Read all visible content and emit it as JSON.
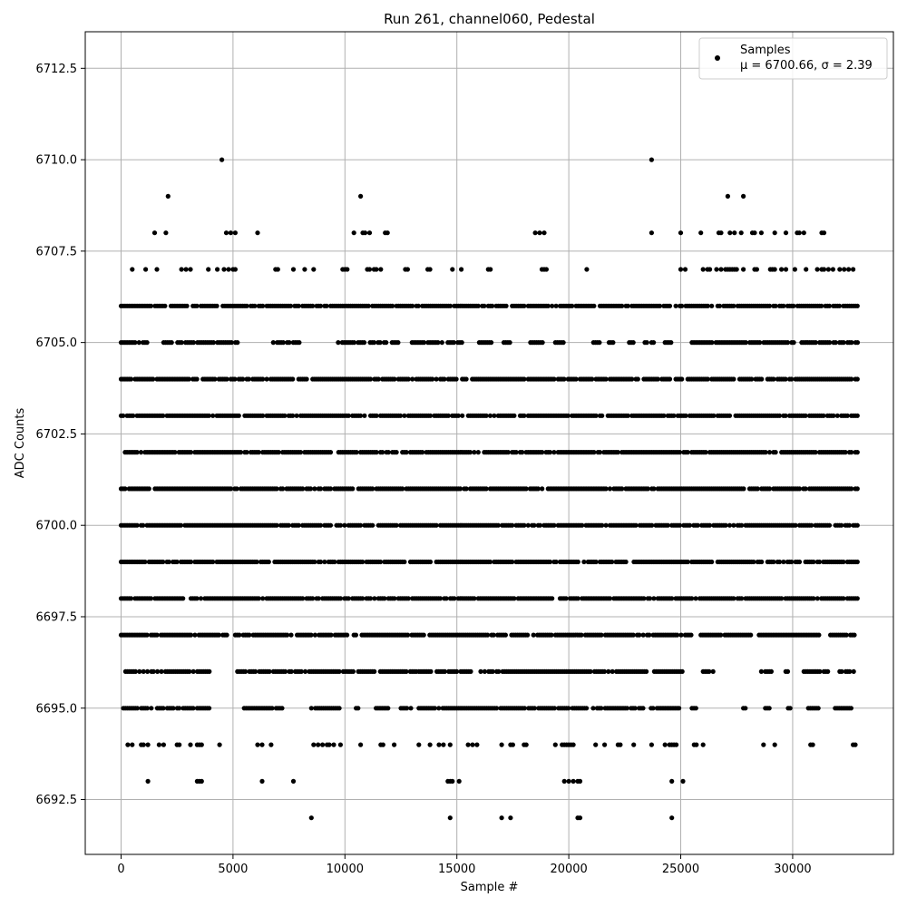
{
  "chart_data": {
    "type": "scatter",
    "title": "Run 261, channel060, Pedestal",
    "xlabel": "Sample #",
    "ylabel": "ADC Counts",
    "xlim": [
      -1600,
      34500
    ],
    "ylim": [
      6691.0,
      6713.5
    ],
    "xticks": [
      0,
      5000,
      10000,
      15000,
      20000,
      25000,
      30000
    ],
    "xtick_labels": [
      "0",
      "5000",
      "10000",
      "15000",
      "20000",
      "25000",
      "30000"
    ],
    "yticks": [
      6692.5,
      6695.0,
      6697.5,
      6700.0,
      6702.5,
      6705.0,
      6707.5,
      6710.0,
      6712.5
    ],
    "ytick_labels": [
      "6692.5",
      "6695.0",
      "6697.5",
      "6700.0",
      "6702.5",
      "6705.0",
      "6707.5",
      "6710.0",
      "6712.5"
    ],
    "grid": true,
    "legend": {
      "placement": "top-right",
      "label": "Samples",
      "stats": "μ = 6700.66, σ = 2.39"
    },
    "marker_color": "#000000",
    "series": [
      {
        "name": "Samples",
        "levels": [
          {
            "y": 6692,
            "x": [
              8500,
              14700,
              17000,
              17400,
              20400,
              20500,
              24600
            ]
          },
          {
            "y": 6693,
            "x": [
              1200,
              3400,
              3500,
              3600,
              6300,
              7700,
              14600,
              14700,
              14800,
              15100,
              19800,
              20000,
              20200,
              20400,
              20500,
              24600,
              25100
            ]
          },
          {
            "y": 6694,
            "x": [
              300,
              500,
              900,
              1000,
              1200,
              1700,
              1900,
              2500,
              2600,
              3100,
              3400,
              3500,
              3600,
              4400,
              6100,
              6300,
              6700,
              8600,
              8800,
              9000,
              9200,
              9300,
              9500,
              9800,
              10700,
              11600,
              11700,
              12200,
              13300,
              13800,
              14200,
              14400,
              14700,
              15500,
              15700,
              15900,
              17000,
              17400,
              17500,
              18000,
              18100,
              19400,
              19700,
              19800,
              19900,
              20000,
              20100,
              20200,
              21200,
              21600,
              22200,
              22300,
              22900,
              23700,
              24300,
              24500,
              24600,
              24700,
              24800,
              25600,
              25700,
              26000,
              28700,
              29200,
              30800,
              30900,
              32700,
              32800
            ]
          },
          {
            "y": 6695,
            "x": [],
            "dense": [
              [
                100,
                4000
              ],
              [
                5500,
                7200
              ],
              [
                8500,
                9800
              ],
              [
                10500,
                10600
              ],
              [
                11300,
                12000
              ],
              [
                12500,
                13000
              ],
              [
                13300,
                20800
              ],
              [
                21000,
                25000
              ],
              [
                25500,
                25800
              ],
              [
                27800,
                27900
              ],
              [
                28600,
                29000
              ],
              [
                29800,
                29900
              ],
              [
                30700,
                31200
              ],
              [
                31900,
                32700
              ]
            ]
          },
          {
            "y": 6696,
            "x": [],
            "dense": [
              [
                200,
                4000
              ],
              [
                5200,
                10400
              ],
              [
                10600,
                13200
              ],
              [
                13300,
                25100
              ],
              [
                26000,
                26500
              ],
              [
                28600,
                29100
              ],
              [
                29600,
                29800
              ],
              [
                30500,
                31600
              ],
              [
                32100,
                32800
              ]
            ]
          },
          {
            "y": 6697,
            "x": [],
            "dense": [
              [
                0,
                4800
              ],
              [
                5100,
                10100
              ],
              [
                10400,
                25500
              ],
              [
                25900,
                28200
              ],
              [
                28500,
                31200
              ],
              [
                31600,
                32800
              ]
            ]
          },
          {
            "y": 6698,
            "x": [],
            "dense": [
              [
                0,
                32900
              ]
            ]
          },
          {
            "y": 6699,
            "x": [],
            "dense": [
              [
                0,
                32900
              ]
            ]
          },
          {
            "y": 6700,
            "x": [],
            "dense": [
              [
                0,
                32900
              ]
            ]
          },
          {
            "y": 6701,
            "x": [],
            "dense": [
              [
                0,
                32900
              ]
            ]
          },
          {
            "y": 6702,
            "x": [],
            "dense": [
              [
                0,
                32900
              ]
            ]
          },
          {
            "y": 6703,
            "x": [],
            "dense": [
              [
                0,
                32900
              ]
            ]
          },
          {
            "y": 6704,
            "x": [],
            "dense": [
              [
                0,
                32900
              ]
            ]
          },
          {
            "y": 6705,
            "x": [],
            "dense": [
              [
                0,
                1300
              ],
              [
                1900,
                5200
              ],
              [
                6800,
                8000
              ],
              [
                9700,
                12400
              ],
              [
                13000,
                14400
              ],
              [
                14600,
                15300
              ],
              [
                16000,
                16600
              ],
              [
                17100,
                17500
              ],
              [
                18200,
                18900
              ],
              [
                19400,
                19800
              ],
              [
                21100,
                21400
              ],
              [
                21800,
                22000
              ],
              [
                22700,
                22900
              ],
              [
                23400,
                23500
              ],
              [
                23700,
                23800
              ],
              [
                24300,
                24700
              ],
              [
                25500,
                32900
              ]
            ]
          },
          {
            "y": 6706,
            "x": [],
            "dense": [
              [
                0,
                32900
              ]
            ]
          },
          {
            "y": 6707,
            "x": [
              500,
              1100,
              1600,
              2700,
              2900,
              3100,
              3900,
              4300,
              4600,
              4800,
              5000,
              5100,
              6900,
              7000,
              7700,
              8200,
              8600,
              9900,
              10000,
              10100,
              11000,
              11100,
              11300,
              11400,
              11600,
              12700,
              12800,
              13700,
              13800,
              14800,
              15200,
              16400,
              16500,
              18800,
              18900,
              19000,
              20800,
              25000,
              25200,
              26000,
              26200,
              26300,
              26600,
              26800,
              27000,
              27100,
              27200,
              27300,
              27400,
              27500,
              27800,
              28300,
              28400,
              29000,
              29100,
              29200,
              29500,
              29700,
              30100,
              30600,
              31100,
              31300,
              31400,
              31600,
              31800,
              32100,
              32300,
              32500,
              32700
            ]
          },
          {
            "y": 6708,
            "x": [
              1500,
              2000,
              4700,
              4900,
              5100,
              6100,
              10400,
              10800,
              10900,
              11100,
              11800,
              11900,
              18500,
              18700,
              18900,
              23700,
              25000,
              25900,
              26700,
              26800,
              27200,
              27400,
              27700,
              28200,
              28300,
              28600,
              29200,
              29700,
              30200,
              30300,
              30500,
              31300,
              31400
            ]
          },
          {
            "y": 6709,
            "x": [
              2100,
              10700,
              27100,
              27800
            ]
          },
          {
            "y": 6710,
            "x": [
              4500,
              23700
            ]
          }
        ]
      }
    ]
  }
}
